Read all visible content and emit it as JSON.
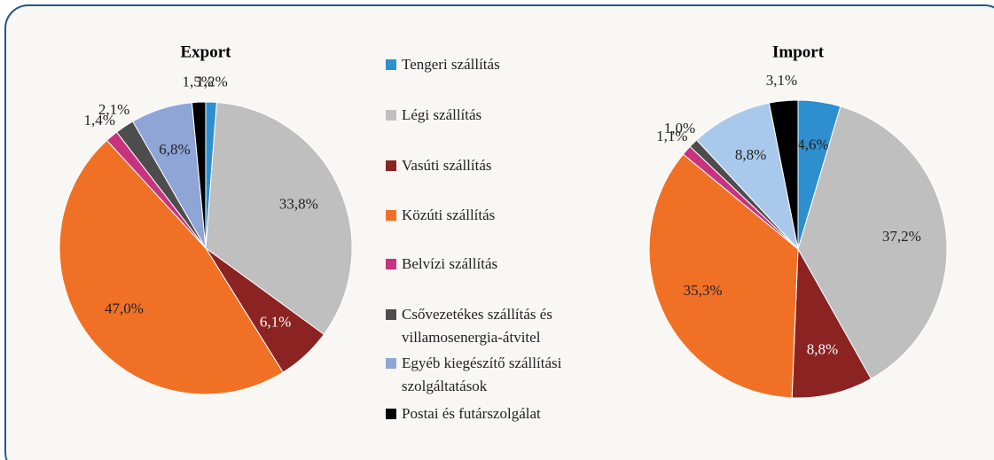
{
  "chart_data": [
    {
      "type": "pie",
      "title": "Export",
      "categories": [
        "Tengeri szállítás",
        "Légi szállítás",
        "Vasúti szállítás",
        "Közúti szállítás",
        "Belvízi szállítás",
        "Csővezetékes szállítás és villamosenergia-átvitel",
        "Egyéb kiegészítő szállítási szolgáltatások",
        "Postai és futárszolgálat"
      ],
      "values": [
        1.2,
        33.8,
        6.1,
        47.0,
        1.4,
        2.1,
        6.8,
        1.5
      ],
      "value_labels": [
        "1,2%",
        "33,8%",
        "6,1%",
        "47,0%",
        "1,4%",
        "2,1%",
        "6,8%",
        "1,5%"
      ],
      "colors": [
        "#2e8fce",
        "#bfbfbf",
        "#8b2323",
        "#f07126",
        "#c8337f",
        "#4d4d4d",
        "#8ea5d6",
        "#000000"
      ]
    },
    {
      "type": "pie",
      "title": "Import",
      "categories": [
        "Tengeri szállítás",
        "Légi szállítás",
        "Vasúti szállítás",
        "Közúti szállítás",
        "Belvízi szállítás",
        "Csővezetékes szállítás és villamosenergia-átvitel",
        "Egyéb kiegészítő szállítási szolgáltatások",
        "Postai és futárszolgálat"
      ],
      "values": [
        4.6,
        37.2,
        8.8,
        35.3,
        1.1,
        1.0,
        8.8,
        3.1
      ],
      "value_labels": [
        "4,6%",
        "37,2%",
        "8,8%",
        "35,3%",
        "1,1%",
        "1,0%",
        "8,8%",
        "3,1%"
      ],
      "colors": [
        "#2e8fce",
        "#bfbfbf",
        "#8b2323",
        "#f07126",
        "#c8337f",
        "#4d4d4d",
        "#a9c9ec",
        "#000000"
      ]
    }
  ]
}
